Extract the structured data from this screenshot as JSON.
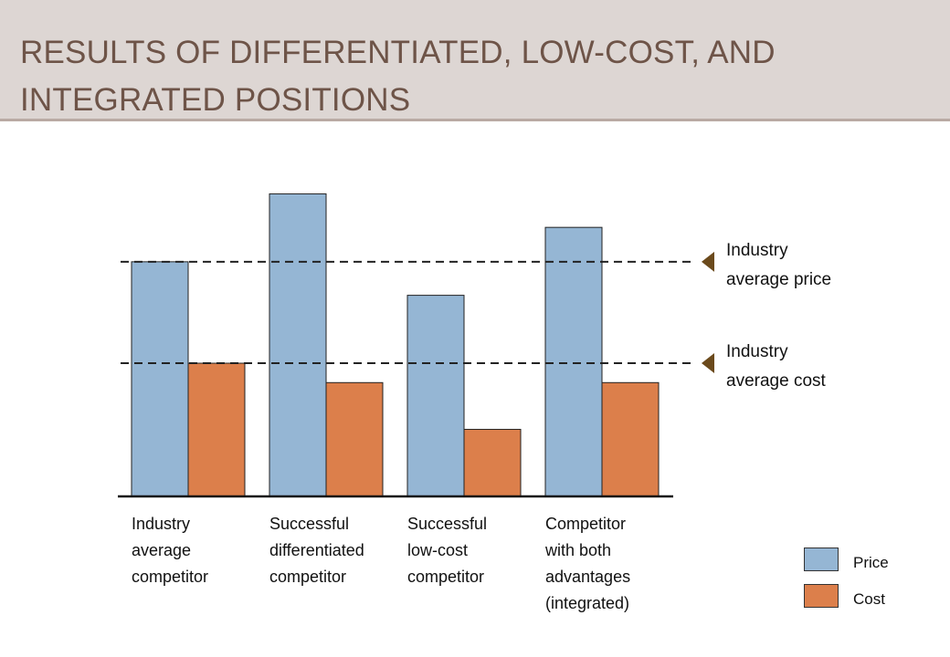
{
  "title": "RESULTS OF DIFFERENTIATED, LOW-COST, AND INTEGRATED POSITIONS",
  "colors": {
    "price": "#95b6d4",
    "cost": "#dc7f4b",
    "marker": "#6b4a1c",
    "title": "#6e5448"
  },
  "reference_lines": [
    {
      "line1": "Industry",
      "line2": "average price"
    },
    {
      "line1": "Industry",
      "line2": "average cost"
    }
  ],
  "chart_data": {
    "type": "bar",
    "categories": [
      [
        "Industry",
        "average",
        "competitor"
      ],
      [
        "Successful",
        "differentiated",
        "competitor"
      ],
      [
        "Successful",
        "low-cost",
        "competitor"
      ],
      [
        "Competitor",
        "with both",
        "advantages",
        "(integrated)"
      ]
    ],
    "series": [
      {
        "name": "Price",
        "values": [
          266,
          343,
          228,
          305
        ]
      },
      {
        "name": "Cost",
        "values": [
          151,
          129,
          76,
          129
        ]
      }
    ],
    "reference_values": {
      "industry_average_price": 266,
      "industry_average_cost": 151
    },
    "ylim": [
      0,
      360
    ],
    "legend_position": "bottom-right",
    "grid": false
  }
}
